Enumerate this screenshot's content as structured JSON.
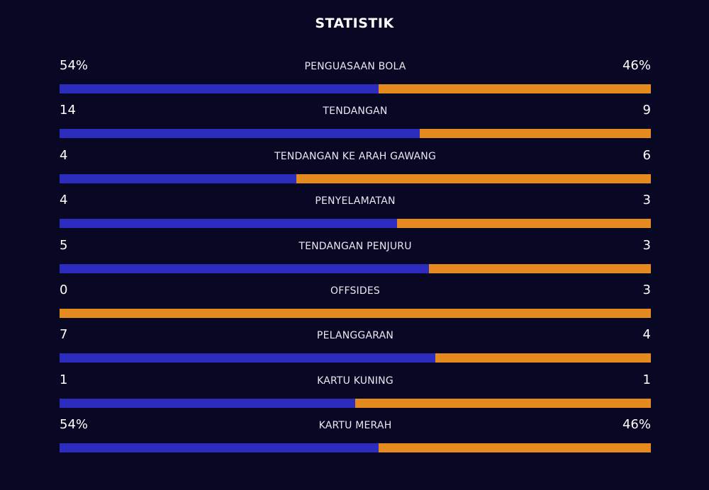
{
  "title": "STATISTIK",
  "colors": {
    "background": "#080724",
    "home": "#2c2cbf",
    "away": "#e58a1f"
  },
  "stats": [
    {
      "label": "PENGUASAAN BOLA",
      "home": "54%",
      "away": "46%",
      "home_share": 0.54
    },
    {
      "label": "TENDANGAN",
      "home": "14",
      "away": "9",
      "home_share": 0.609
    },
    {
      "label": "TENDANGAN KE ARAH GAWANG",
      "home": "4",
      "away": "6",
      "home_share": 0.4
    },
    {
      "label": "PENYELAMATAN",
      "home": "4",
      "away": "3",
      "home_share": 0.571
    },
    {
      "label": "TENDANGAN PENJURU",
      "home": "5",
      "away": "3",
      "home_share": 0.625
    },
    {
      "label": "OFFSIDES",
      "home": "0",
      "away": "3",
      "home_share": 0.0
    },
    {
      "label": "PELANGGARAN",
      "home": "7",
      "away": "4",
      "home_share": 0.636
    },
    {
      "label": "KARTU KUNING",
      "home": "1",
      "away": "1",
      "home_share": 0.5
    },
    {
      "label": "KARTU MERAH",
      "home": "54%",
      "away": "46%",
      "home_share": 0.54
    }
  ]
}
